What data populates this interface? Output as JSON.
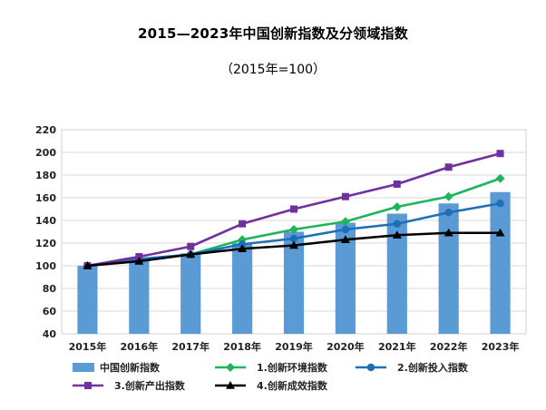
{
  "chart_data": {
    "type": "bar",
    "title": "2015—2023年中国创新指数及分领域指数",
    "subtitle": "（2015年=100）",
    "categories": [
      "2015年",
      "2016年",
      "2017年",
      "2018年",
      "2019年",
      "2020年",
      "2021年",
      "2022年",
      "2023年"
    ],
    "ylim": [
      40,
      220
    ],
    "yticks": [
      40,
      60,
      80,
      100,
      120,
      140,
      160,
      180,
      200,
      220
    ],
    "grid": true,
    "legend_placement": "bottom",
    "series": [
      {
        "name": "中国创新指数",
        "kind": "bar",
        "color": "#5B9BD5",
        "values": [
          100,
          105,
          111,
          120,
          130,
          138,
          146,
          155,
          165
        ]
      },
      {
        "name": "1.创新环境指数",
        "kind": "line",
        "marker": "diamond",
        "color": "#1EB45A",
        "values": [
          100,
          105,
          110,
          123,
          132,
          139,
          152,
          161,
          177
        ]
      },
      {
        "name": "2.创新投入指数",
        "kind": "line",
        "marker": "circle",
        "color": "#1F6FB8",
        "values": [
          100,
          106,
          110,
          119,
          124,
          132,
          137,
          147,
          155
        ]
      },
      {
        "name": "3.创新产出指数",
        "kind": "line",
        "marker": "square",
        "color": "#7030A0",
        "values": [
          100,
          108,
          117,
          137,
          150,
          161,
          172,
          187,
          199
        ]
      },
      {
        "name": "4.创新成效指数",
        "kind": "line",
        "marker": "triangle",
        "color": "#000000",
        "values": [
          100,
          104,
          110,
          115,
          118,
          123,
          127,
          129,
          129
        ]
      }
    ]
  }
}
